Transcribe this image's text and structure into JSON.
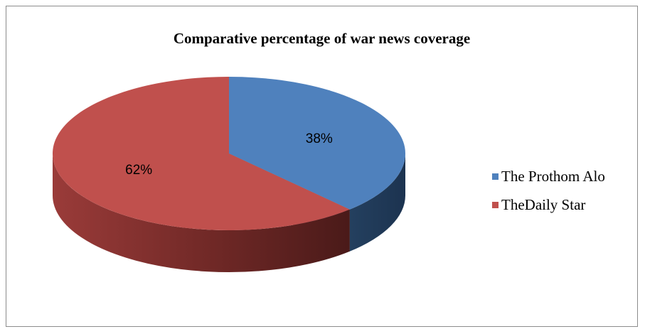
{
  "chart_data": {
    "type": "pie",
    "title": "Comparative percentage of war news coverage",
    "categories": [
      "The Prothom Alo",
      "TheDaily Star"
    ],
    "values": [
      38,
      62
    ],
    "data_labels": [
      "38%",
      "62%"
    ],
    "colors": [
      "#4f81bd",
      "#c0504d"
    ],
    "legend_position": "right",
    "style": "3d-pie"
  }
}
